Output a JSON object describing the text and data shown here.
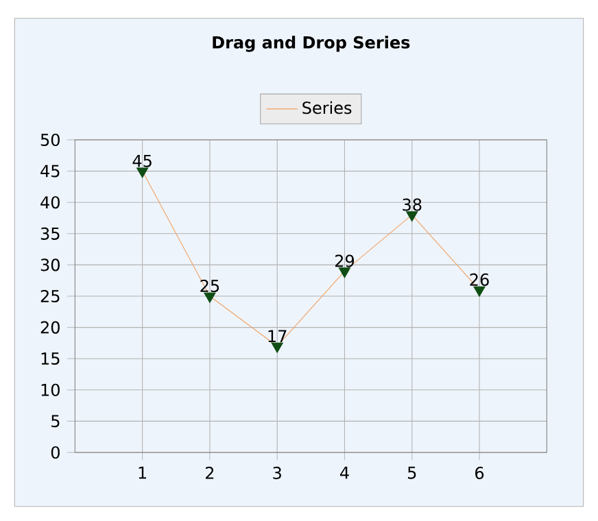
{
  "chart_data": {
    "type": "line",
    "title": "Drag and Drop Series",
    "x": [
      1,
      2,
      3,
      4,
      5,
      6
    ],
    "series": [
      {
        "name": "Series",
        "color": "#f0a060",
        "colors": [
          "#0f4d14",
          "#0f4d14",
          "#0f4d14",
          "#0f4d14",
          "#0f4d14",
          "#0f4d14"
        ],
        "values": [
          45,
          25,
          17,
          29,
          38,
          26
        ]
      }
    ],
    "xlim": [
      0,
      7
    ],
    "xticks": [
      1,
      2,
      3,
      4,
      5,
      6
    ],
    "ylim": [
      0,
      50
    ],
    "yticks": [
      0,
      5,
      10,
      15,
      20,
      25,
      30,
      35,
      40,
      45,
      50
    ],
    "grid": true,
    "legend": "top",
    "marker": "triangle",
    "line_style": "solid",
    "data_labels": true
  }
}
